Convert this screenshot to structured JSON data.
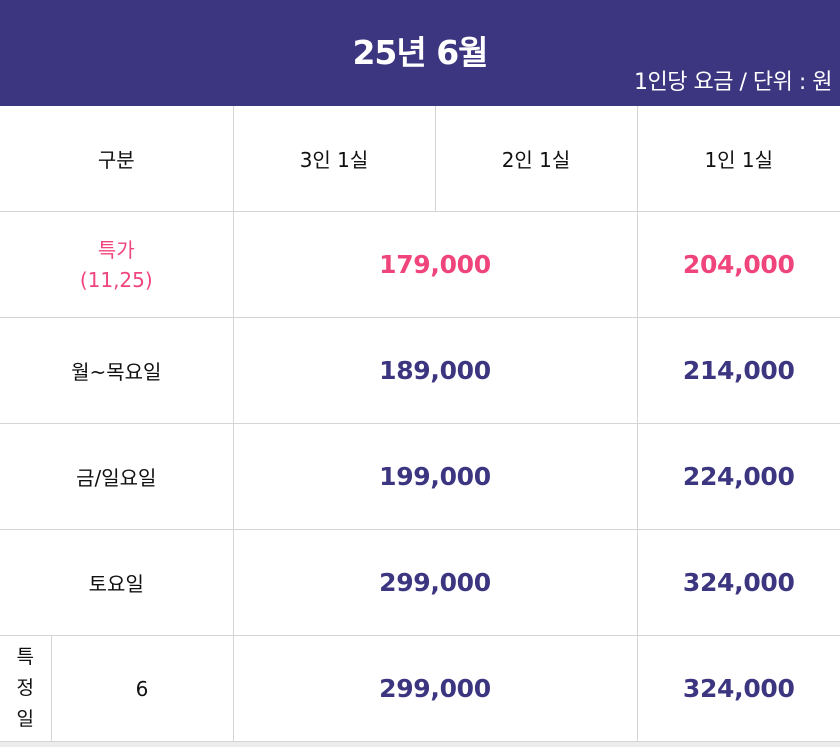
{
  "header": {
    "title": "25년 6월",
    "unit_note": "1인당 요금 / 단위 : 원"
  },
  "columns": [
    "구분",
    "3인 1실",
    "2인 1실",
    "1인 1실"
  ],
  "rows": {
    "special": {
      "label_line1": "특가",
      "label_line2": "(11,25)",
      "price_shared": "179,000",
      "price_single": "204,000"
    },
    "weekday": {
      "label": "월~목요일",
      "price_shared": "189,000",
      "price_single": "214,000"
    },
    "friday_sunday": {
      "label": "금/일요일",
      "price_shared": "199,000",
      "price_single": "224,000"
    },
    "saturday": {
      "label": "토요일",
      "price_shared": "299,000",
      "price_single": "324,000"
    },
    "specific_day": {
      "label_chars": [
        "특",
        "정",
        "일"
      ],
      "day": "6",
      "price_shared": "299,000",
      "price_single": "324,000"
    }
  },
  "colors": {
    "header_bg": "#3c3580",
    "price_text": "#3c3580",
    "special_text": "#f0457c"
  }
}
